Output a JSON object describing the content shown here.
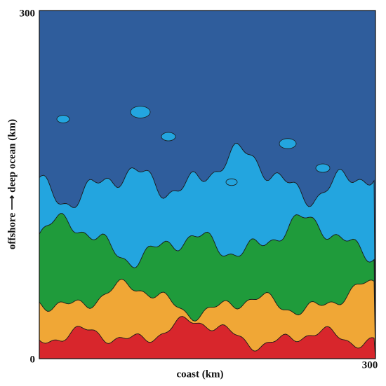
{
  "chart_data": {
    "type": "contour",
    "xlabel": "coast (km)",
    "ylabel": "offshore ⟶ deep ocean (km)",
    "xlim": [
      0,
      300
    ],
    "ylim": [
      0,
      300
    ],
    "xticks": [
      300
    ],
    "yticks": [
      0,
      300
    ],
    "colors": [
      "#d8262c",
      "#f0a736",
      "#1f9b3b",
      "#23a5df",
      "#2f5d9c"
    ]
  }
}
